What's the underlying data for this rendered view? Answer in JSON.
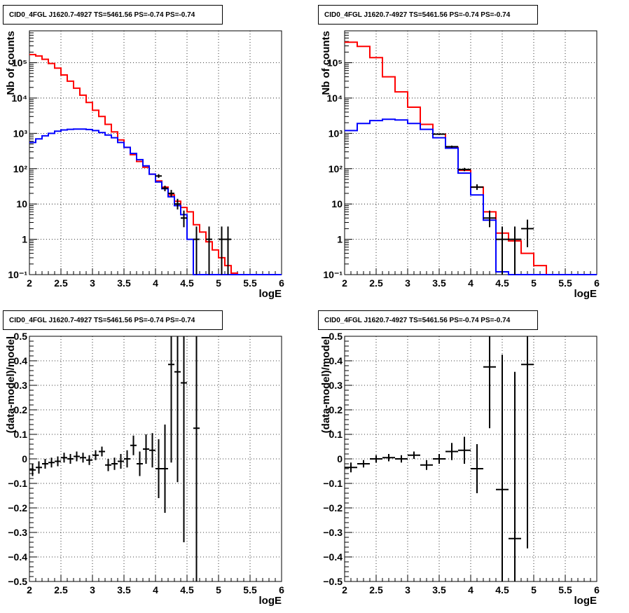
{
  "chart_data": [
    {
      "type": "line",
      "title": "CID0_4FGL J1620.7-4927 TS=5461.56 PS=-0.74 PS=-0.74",
      "xlabel": "logE",
      "ylabel": "Nb of counts",
      "xlim": [
        2,
        6
      ],
      "ylim": [
        0.1,
        800000
      ],
      "yscale": "log",
      "grid": true,
      "y_tick_labels": [
        "10⁻¹",
        "1",
        "10",
        "10²",
        "10³",
        "10⁴",
        "10⁵"
      ],
      "bin_edges": [
        2.0,
        2.1,
        2.2,
        2.3,
        2.4,
        2.5,
        2.6,
        2.7,
        2.8,
        2.9,
        3.0,
        3.1,
        3.2,
        3.3,
        3.4,
        3.5,
        3.6,
        3.7,
        3.8,
        3.9,
        4.0,
        4.1,
        4.2,
        4.3,
        4.4,
        4.5,
        4.6,
        4.7,
        4.8,
        4.9,
        5.0,
        5.1,
        5.2,
        5.3,
        5.4,
        5.5,
        5.6,
        5.7,
        5.8,
        5.9,
        6.0
      ],
      "series": [
        {
          "color": "#ff0000",
          "values": [
            170000,
            155000,
            125000,
            95000,
            70000,
            45000,
            30000,
            19000,
            12000,
            7500,
            4500,
            3000,
            1800,
            1100,
            650,
            400,
            250,
            160,
            110,
            70,
            45,
            30,
            18,
            12,
            8,
            6,
            2.6,
            1.6,
            0.85,
            0.5,
            0.3,
            0.18,
            0.11,
            0.1,
            0.1,
            0.1,
            0.1,
            0.1,
            0.1,
            0.1
          ]
        },
        {
          "color": "#0000ff",
          "values": [
            550,
            700,
            850,
            1000,
            1150,
            1250,
            1300,
            1320,
            1320,
            1280,
            1200,
            1050,
            900,
            750,
            550,
            400,
            270,
            180,
            120,
            70,
            42,
            27,
            16,
            9,
            5,
            1.0,
            0.1,
            0.1,
            0.1,
            0.1,
            0.1,
            0.1,
            0.1,
            0.1,
            0.1,
            0.1,
            0.1,
            0.1,
            0.1,
            0.1
          ]
        }
      ],
      "data_points": [
        {
          "x": 4.05,
          "y": 62,
          "xerr": 0.05,
          "ylo": 55,
          "yhi": 70
        },
        {
          "x": 4.15,
          "y": 28,
          "xerr": 0.05,
          "ylo": 23,
          "yhi": 33
        },
        {
          "x": 4.25,
          "y": 20,
          "xerr": 0.05,
          "ylo": 16,
          "yhi": 25
        },
        {
          "x": 4.35,
          "y": 10,
          "xerr": 0.05,
          "ylo": 7,
          "yhi": 14
        },
        {
          "x": 4.45,
          "y": 4,
          "xerr": 0.05,
          "ylo": 2.2,
          "yhi": 6.5
        },
        {
          "x": 4.65,
          "y": 1,
          "xerr": 0.05,
          "ylo": 0.1,
          "yhi": 2.3
        },
        {
          "x": 4.85,
          "y": 1,
          "xerr": 0.05,
          "ylo": 0.1,
          "yhi": 2.3
        },
        {
          "x": 5.05,
          "y": 1,
          "xerr": 0.05,
          "ylo": 0.1,
          "yhi": 2.3
        },
        {
          "x": 5.15,
          "y": 1,
          "xerr": 0.05,
          "ylo": 0.1,
          "yhi": 2.3
        }
      ]
    },
    {
      "type": "line",
      "title": "CID0_4FGL J1620.7-4927 TS=5461.56 PS=-0.74 PS=-0.74",
      "xlabel": "logE",
      "ylabel": "Nb of counts",
      "xlim": [
        2,
        6
      ],
      "ylim": [
        0.1,
        800000
      ],
      "yscale": "log",
      "grid": true,
      "y_tick_labels": [
        "10⁻¹",
        "1",
        "10",
        "10²",
        "10³",
        "10⁴",
        "10⁵"
      ],
      "bin_edges": [
        2.0,
        2.2,
        2.4,
        2.6,
        2.8,
        3.0,
        3.2,
        3.4,
        3.6,
        3.8,
        4.0,
        4.2,
        4.4,
        4.6,
        4.8,
        5.0,
        5.2,
        5.4,
        5.6,
        5.8,
        6.0
      ],
      "series": [
        {
          "color": "#ff0000",
          "values": [
            380000,
            290000,
            140000,
            40000,
            15000,
            5500,
            1800,
            950,
            400,
            90,
            30,
            6,
            1.5,
            0.9,
            0.4,
            0.18,
            0.1,
            0.1,
            0.1,
            0.1
          ]
        },
        {
          "color": "#0000ff",
          "values": [
            1200,
            1900,
            2300,
            2500,
            2400,
            1900,
            1300,
            750,
            380,
            75,
            18,
            3.5,
            0.12,
            0.1,
            0.1,
            0.1,
            0.1,
            0.1,
            0.1,
            0.1
          ]
        }
      ],
      "data_points": [
        {
          "x": 3.5,
          "y": 950,
          "xerr": 0.1,
          "ylo": 900,
          "yhi": 1000
        },
        {
          "x": 3.7,
          "y": 420,
          "xerr": 0.1,
          "ylo": 390,
          "yhi": 450
        },
        {
          "x": 3.9,
          "y": 95,
          "xerr": 0.1,
          "ylo": 85,
          "yhi": 105
        },
        {
          "x": 4.1,
          "y": 30,
          "xerr": 0.1,
          "ylo": 25,
          "yhi": 36
        },
        {
          "x": 4.3,
          "y": 4,
          "xerr": 0.1,
          "ylo": 2.2,
          "yhi": 6.5
        },
        {
          "x": 4.5,
          "y": 1,
          "xerr": 0.1,
          "ylo": 0.1,
          "yhi": 2.3
        },
        {
          "x": 4.7,
          "y": 1,
          "xerr": 0.1,
          "ylo": 0.1,
          "yhi": 2.3
        },
        {
          "x": 4.9,
          "y": 2,
          "xerr": 0.1,
          "ylo": 0.6,
          "yhi": 3.6
        }
      ]
    },
    {
      "type": "scatter",
      "title": "CID0_4FGL J1620.7-4927 TS=5461.56 PS=-0.74 PS=-0.74",
      "xlabel": "logE",
      "ylabel": "(data-model)/model",
      "xlim": [
        2,
        6
      ],
      "ylim": [
        -0.5,
        0.5
      ],
      "grid": true,
      "y_tick_labels": [
        "−0.5",
        "−0.4",
        "−0.3",
        "−0.2",
        "−0.1",
        "0",
        "0.1",
        "0.2",
        "0.3",
        "0.4",
        "0.5"
      ],
      "data_points": [
        {
          "x": 2.05,
          "y": -0.045,
          "xerr": 0.05,
          "yerr": 0.025
        },
        {
          "x": 2.15,
          "y": -0.035,
          "xerr": 0.05,
          "yerr": 0.025
        },
        {
          "x": 2.25,
          "y": -0.02,
          "xerr": 0.05,
          "yerr": 0.02
        },
        {
          "x": 2.35,
          "y": -0.015,
          "xerr": 0.05,
          "yerr": 0.02
        },
        {
          "x": 2.45,
          "y": -0.01,
          "xerr": 0.05,
          "yerr": 0.02
        },
        {
          "x": 2.55,
          "y": 0.005,
          "xerr": 0.05,
          "yerr": 0.02
        },
        {
          "x": 2.65,
          "y": 0.0,
          "xerr": 0.05,
          "yerr": 0.02
        },
        {
          "x": 2.75,
          "y": 0.01,
          "xerr": 0.05,
          "yerr": 0.02
        },
        {
          "x": 2.85,
          "y": 0.005,
          "xerr": 0.05,
          "yerr": 0.02
        },
        {
          "x": 2.95,
          "y": -0.005,
          "xerr": 0.05,
          "yerr": 0.02
        },
        {
          "x": 3.05,
          "y": 0.015,
          "xerr": 0.05,
          "yerr": 0.02
        },
        {
          "x": 3.15,
          "y": 0.03,
          "xerr": 0.05,
          "yerr": 0.02
        },
        {
          "x": 3.25,
          "y": -0.025,
          "xerr": 0.05,
          "yerr": 0.025
        },
        {
          "x": 3.35,
          "y": -0.02,
          "xerr": 0.05,
          "yerr": 0.025
        },
        {
          "x": 3.45,
          "y": -0.01,
          "xerr": 0.05,
          "yerr": 0.03
        },
        {
          "x": 3.55,
          "y": 0.0,
          "xerr": 0.05,
          "yerr": 0.035
        },
        {
          "x": 3.65,
          "y": 0.055,
          "xerr": 0.05,
          "yerr": 0.04
        },
        {
          "x": 3.75,
          "y": -0.02,
          "xerr": 0.05,
          "yerr": 0.05
        },
        {
          "x": 3.85,
          "y": 0.04,
          "xerr": 0.05,
          "yerr": 0.06
        },
        {
          "x": 3.95,
          "y": 0.035,
          "xerr": 0.05,
          "yerr": 0.07
        },
        {
          "x": 4.05,
          "y": -0.04,
          "xerr": 0.05,
          "yerr": 0.12
        },
        {
          "x": 4.15,
          "y": -0.04,
          "xerr": 0.05,
          "yerr": 0.18
        },
        {
          "x": 4.25,
          "y": 0.385,
          "xerr": 0.05,
          "yerr": 0.4
        },
        {
          "x": 4.35,
          "y": 0.355,
          "xerr": 0.05,
          "yerr": 0.45
        },
        {
          "x": 4.45,
          "y": 0.31,
          "xerr": 0.05,
          "yerr": 0.65
        },
        {
          "x": 4.65,
          "y": 0.125,
          "xerr": 0.05,
          "yerr": 1.0
        }
      ]
    },
    {
      "type": "scatter",
      "title": "CID0_4FGL J1620.7-4927 TS=5461.56 PS=-0.74 PS=-0.74",
      "xlabel": "logE",
      "ylabel": "(data-model)/model",
      "xlim": [
        2,
        6
      ],
      "ylim": [
        -0.5,
        0.5
      ],
      "grid": true,
      "y_tick_labels": [
        "−0.5",
        "−0.4",
        "−0.3",
        "−0.2",
        "−0.1",
        "0",
        "0.1",
        "0.2",
        "0.3",
        "0.4",
        "0.5"
      ],
      "data_points": [
        {
          "x": 2.1,
          "y": -0.035,
          "xerr": 0.1,
          "yerr": 0.02
        },
        {
          "x": 2.3,
          "y": -0.02,
          "xerr": 0.1,
          "yerr": 0.015
        },
        {
          "x": 2.5,
          "y": 0.0,
          "xerr": 0.1,
          "yerr": 0.015
        },
        {
          "x": 2.7,
          "y": 0.005,
          "xerr": 0.1,
          "yerr": 0.015
        },
        {
          "x": 2.9,
          "y": 0.0,
          "xerr": 0.1,
          "yerr": 0.015
        },
        {
          "x": 3.1,
          "y": 0.015,
          "xerr": 0.1,
          "yerr": 0.015
        },
        {
          "x": 3.3,
          "y": -0.025,
          "xerr": 0.1,
          "yerr": 0.02
        },
        {
          "x": 3.5,
          "y": 0.0,
          "xerr": 0.1,
          "yerr": 0.02
        },
        {
          "x": 3.7,
          "y": 0.03,
          "xerr": 0.1,
          "yerr": 0.035
        },
        {
          "x": 3.9,
          "y": 0.035,
          "xerr": 0.1,
          "yerr": 0.055
        },
        {
          "x": 4.1,
          "y": -0.04,
          "xerr": 0.1,
          "yerr": 0.1
        },
        {
          "x": 4.3,
          "y": 0.375,
          "xerr": 0.1,
          "yerr": 0.25
        },
        {
          "x": 4.5,
          "y": -0.125,
          "xerr": 0.1,
          "yerr": 0.55
        },
        {
          "x": 4.7,
          "y": -0.325,
          "xerr": 0.1,
          "yerr": 0.68
        },
        {
          "x": 4.9,
          "y": 0.385,
          "xerr": 0.1,
          "yerr": 0.75
        }
      ]
    }
  ]
}
